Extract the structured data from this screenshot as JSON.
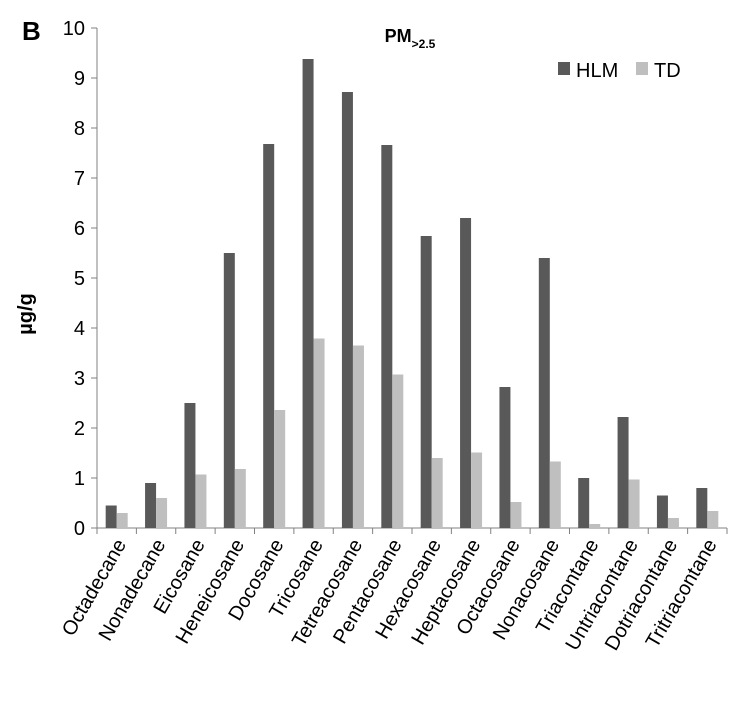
{
  "panel_label": "B",
  "chart_data": {
    "type": "bar",
    "title": "PM",
    "title_subscript": ">2.5",
    "xlabel": "",
    "ylabel": "µg/g",
    "ylim": [
      0,
      10
    ],
    "yticks": [
      "0",
      "1",
      "2",
      "3",
      "4",
      "5",
      "6",
      "7",
      "8",
      "9",
      "10"
    ],
    "grid": false,
    "legend_position": "top-right",
    "categories": [
      "Octadecane",
      "Nonadecane",
      "Eicosane",
      "Heneicosane",
      "Docosane",
      "Tricosane",
      "Tetreacosane",
      "Pentacosane",
      "Hexacosane",
      "Heptacosane",
      "Octacosane",
      "Nonacosane",
      "Triacontane",
      "Untriacontane",
      "Dotriacontane",
      "Tritriacontane"
    ],
    "series": [
      {
        "name": "HLM",
        "color": "#595959",
        "values": [
          0.45,
          0.9,
          2.5,
          5.5,
          7.68,
          9.38,
          8.72,
          7.66,
          5.84,
          6.2,
          2.82,
          5.4,
          1.0,
          2.22,
          0.65,
          0.8
        ]
      },
      {
        "name": "TD",
        "color": "#bfbfbf",
        "values": [
          0.3,
          0.6,
          1.07,
          1.18,
          2.36,
          3.79,
          3.65,
          3.07,
          1.4,
          1.51,
          0.52,
          1.33,
          0.08,
          0.97,
          0.2,
          0.34
        ]
      }
    ]
  }
}
